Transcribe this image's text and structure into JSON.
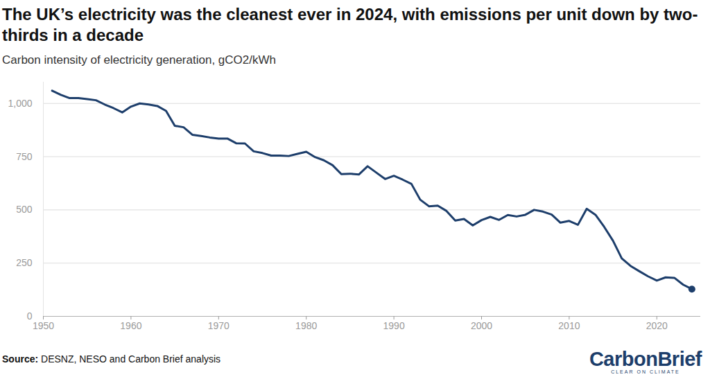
{
  "chart_data": {
    "type": "line",
    "title": "The UK’s electricity was the cleanest ever in 2024, with emissions per unit down by two-thirds in a decade",
    "subtitle": "Carbon intensity of electricity generation, gCO2/kWh",
    "source_label": "Source:",
    "source": "DESNZ, NESO and Carbon Brief analysis",
    "logo": "CarbonBrief",
    "tagline": "CLEAR ON CLIMATE",
    "x": [
      1951,
      1952,
      1953,
      1954,
      1955,
      1956,
      1957,
      1958,
      1959,
      1960,
      1961,
      1962,
      1963,
      1964,
      1965,
      1966,
      1967,
      1968,
      1969,
      1970,
      1971,
      1972,
      1973,
      1974,
      1975,
      1976,
      1977,
      1978,
      1979,
      1980,
      1981,
      1982,
      1983,
      1984,
      1985,
      1986,
      1987,
      1988,
      1989,
      1990,
      1991,
      1992,
      1993,
      1994,
      1995,
      1996,
      1997,
      1998,
      1999,
      2000,
      2001,
      2002,
      2003,
      2004,
      2005,
      2006,
      2007,
      2008,
      2009,
      2010,
      2011,
      2012,
      2013,
      2014,
      2015,
      2016,
      2017,
      2018,
      2019,
      2020,
      2021,
      2022,
      2023,
      2024
    ],
    "values": [
      1060,
      1040,
      1025,
      1025,
      1020,
      1015,
      995,
      978,
      958,
      985,
      1000,
      995,
      988,
      965,
      895,
      888,
      853,
      847,
      840,
      835,
      835,
      813,
      812,
      775,
      767,
      755,
      755,
      753,
      763,
      773,
      748,
      733,
      710,
      668,
      670,
      666,
      705,
      675,
      645,
      660,
      642,
      622,
      548,
      517,
      520,
      495,
      450,
      457,
      427,
      452,
      467,
      453,
      476,
      469,
      477,
      500,
      492,
      478,
      440,
      448,
      430,
      505,
      477,
      420,
      355,
      272,
      237,
      212,
      188,
      168,
      183,
      181,
      149,
      128
    ],
    "color": "#1d3e6b",
    "xlim": [
      1950,
      2025
    ],
    "ylim": [
      0,
      1100
    ],
    "xticks": [
      1950,
      1960,
      1970,
      1980,
      1990,
      2000,
      2010,
      2020
    ],
    "yticks": [
      0,
      250,
      500,
      750,
      {
        "value": 1000,
        "label": "1,000"
      }
    ],
    "grid": "y"
  }
}
